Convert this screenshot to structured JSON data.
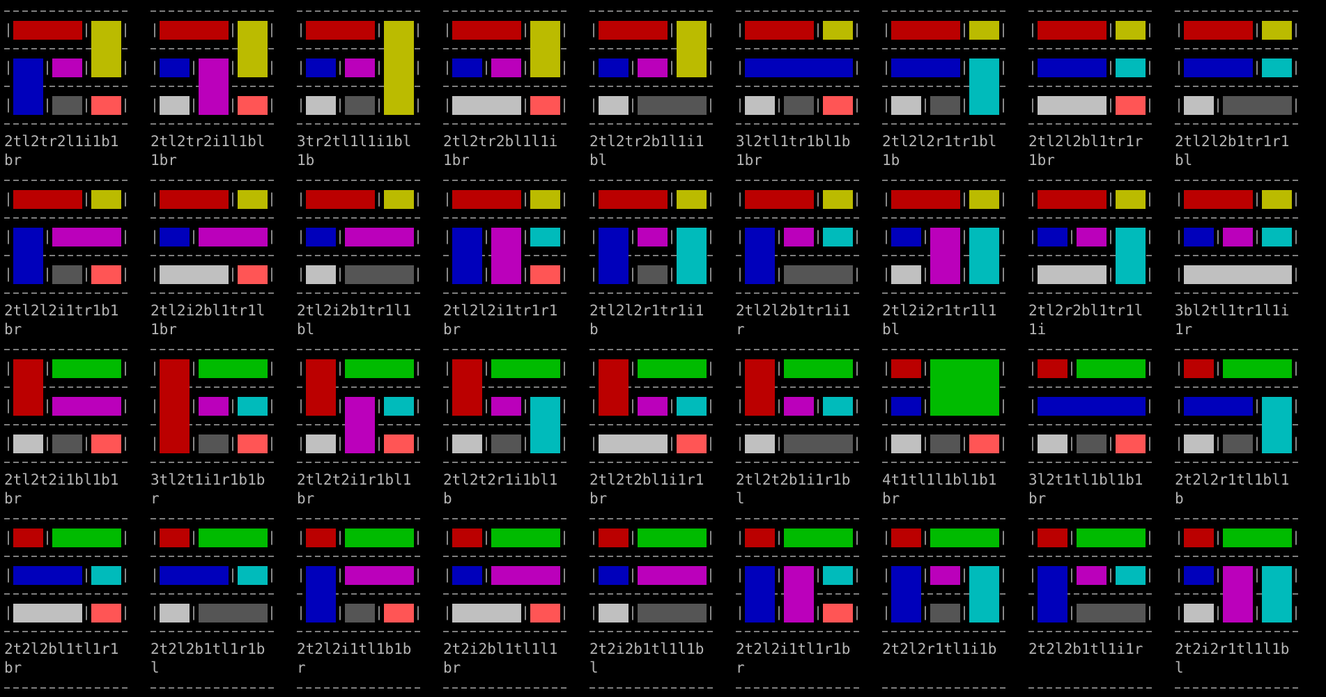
{
  "tiles": [
    [
      "2tl2tr2l1i1b1",
      "br"
    ],
    [
      "2tl2tr2i1l1bl",
      "1br"
    ],
    [
      "3tr2tl1l1i1bl",
      "1b"
    ],
    [
      "2tl2tr2bl1l1i",
      "1br"
    ],
    [
      "2tl2tr2b1l1i1",
      "bl"
    ],
    [
      "3l2tl1tr1bl1b",
      "1br"
    ],
    [
      "2tl2l2r1tr1bl",
      "1b"
    ],
    [
      "2tl2l2bl1tr1r",
      "1br"
    ],
    [
      "2tl2l2b1tr1r1",
      "bl"
    ],
    [
      "2tl2l2i1tr1b1",
      "br"
    ],
    [
      "2tl2i2bl1tr1l",
      "1br"
    ],
    [
      "2tl2i2b1tr1l1",
      "bl"
    ],
    [
      "2tl2l2i1tr1r1",
      "br"
    ],
    [
      "2tl2l2r1tr1i1",
      "b"
    ],
    [
      "2tl2l2b1tr1i1",
      "r"
    ],
    [
      "2tl2i2r1tr1l1",
      "bl"
    ],
    [
      "2tl2r2bl1tr1l",
      "1i"
    ],
    [
      "3bl2tl1tr1l1i",
      "1r"
    ],
    [
      "2tl2t2i1bl1b1",
      "br"
    ],
    [
      "3tl2t1i1r1b1b",
      "r"
    ],
    [
      "2tl2t2i1r1bl1",
      "br"
    ],
    [
      "2tl2t2r1i1bl1",
      "b"
    ],
    [
      "2tl2t2bl1i1r1",
      "br"
    ],
    [
      "2tl2t2b1i1r1b",
      "l"
    ],
    [
      "4t1tl1l1bl1b1",
      "br"
    ],
    [
      "3l2t1tl1bl1b1",
      "br"
    ],
    [
      "2t2l2r1tl1bl1",
      "b"
    ],
    [
      "2t2l2bl1tl1r1",
      "br"
    ],
    [
      "2t2l2b1tl1r1b",
      "l"
    ],
    [
      "2t2l2i1tl1b1b",
      "r"
    ],
    [
      "2t2i2bl1tl1l1",
      "br"
    ],
    [
      "2t2i2b1tl1l1b",
      "l"
    ],
    [
      "2t2l2i1tl1r1b",
      "r"
    ],
    [
      "2t2l2r1tl1i1b"
    ],
    [
      "2t2l2b1tl1i1r"
    ],
    [
      "2t2i2r1tl1l1b",
      "l"
    ]
  ]
}
